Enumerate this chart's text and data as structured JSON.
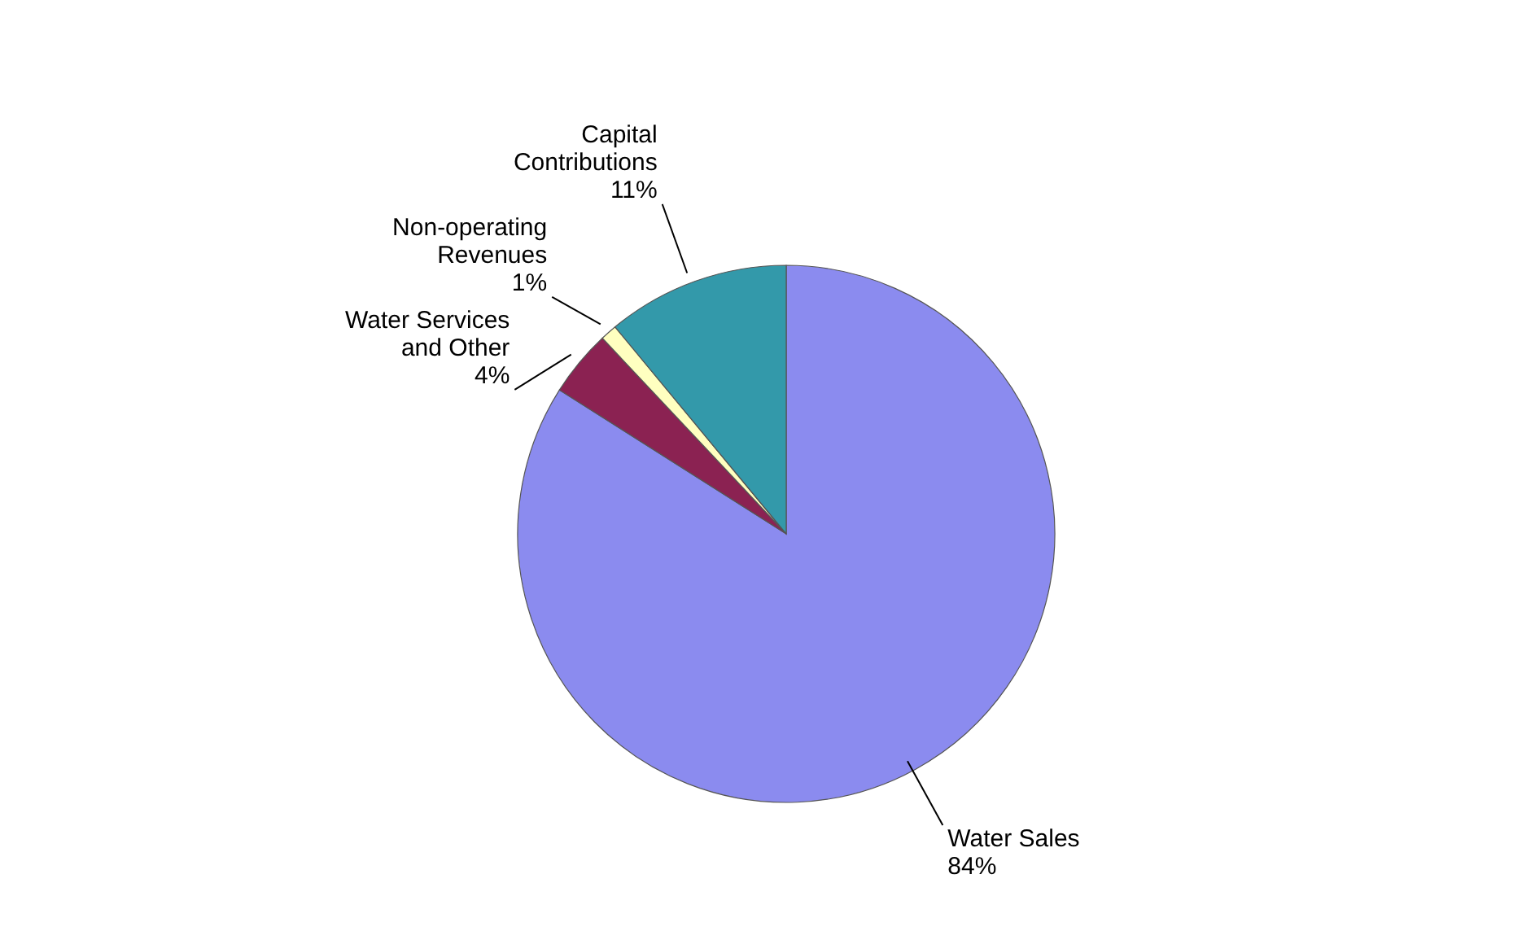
{
  "chart_data": {
    "type": "pie",
    "categories": [
      "Water Sales",
      "Water Services and Other",
      "Non-operating Revenues",
      "Capital Contributions"
    ],
    "values": [
      84,
      4,
      1,
      11
    ],
    "colors": [
      "#8b8bef",
      "#8b2252",
      "#ffffc0",
      "#3399aa"
    ],
    "value_labels": [
      "84%",
      "4%",
      "1%",
      "11%"
    ]
  }
}
